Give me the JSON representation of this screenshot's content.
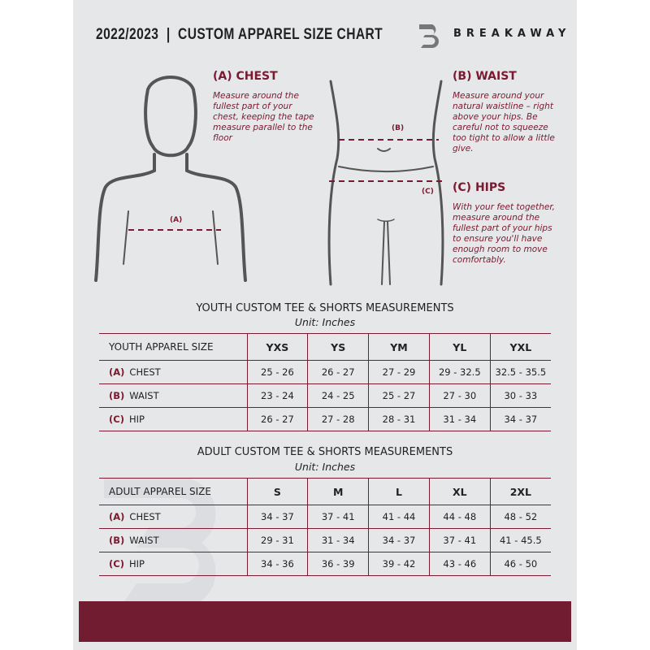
{
  "header": {
    "title": "2022/2023  |  CUSTOM APPAREL SIZE CHART",
    "brand": "BREAKAWAY",
    "logo_letter": "B"
  },
  "guides": {
    "chest": {
      "title": "(A) CHEST",
      "text": "Measure around the fullest part of your chest, keeping the tape measure parallel to the floor",
      "marker": "(A)"
    },
    "waist": {
      "title": "(B) WAIST",
      "text": "Measure around your natural waistline – right above your hips. Be careful not to squeeze too tight to allow a little give.",
      "marker": "(B)"
    },
    "hips": {
      "title": "(C) HIPS",
      "text": "With your feet together, measure around the fullest part of your hips to ensure you'll have enough room to move comfortably.",
      "marker": "(C)"
    }
  },
  "youth": {
    "title": "YOUTH CUSTOM TEE & SHORTS MEASUREMENTS",
    "unit": "Unit: Inches",
    "header": "YOUTH APPAREL SIZE",
    "sizes": [
      "YXS",
      "YS",
      "YM",
      "YL",
      "YXL"
    ],
    "rows": [
      {
        "letter": "(A)",
        "label": "CHEST",
        "values": [
          "25 - 26",
          "26 - 27",
          "27 - 29",
          "29 - 32.5",
          "32.5 - 35.5"
        ]
      },
      {
        "letter": "(B)",
        "label": "WAIST",
        "values": [
          "23 - 24",
          "24 - 25",
          "25 - 27",
          "27 - 30",
          "30 - 33"
        ]
      },
      {
        "letter": "(C)",
        "label": "HIP",
        "values": [
          "26 - 27",
          "27 - 28",
          "28 - 31",
          "31 - 34",
          "34 - 37"
        ]
      }
    ]
  },
  "adult": {
    "title": "ADULT CUSTOM TEE & SHORTS MEASUREMENTS",
    "unit": "Unit: Inches",
    "header": "ADULT APPAREL SIZE",
    "sizes": [
      "S",
      "M",
      "L",
      "XL",
      "2XL"
    ],
    "rows": [
      {
        "letter": "(A)",
        "label": "CHEST",
        "values": [
          "34 - 37",
          "37 - 41",
          "41 - 44",
          "44 - 48",
          "48 - 52"
        ]
      },
      {
        "letter": "(B)",
        "label": "WAIST",
        "values": [
          "29 - 31",
          "31 - 34",
          "34 - 37",
          "37 - 41",
          "41 - 45.5"
        ]
      },
      {
        "letter": "(C)",
        "label": "HIP",
        "values": [
          "34 - 36",
          "36 - 39",
          "39 - 42",
          "43 - 46",
          "46 - 50"
        ]
      }
    ]
  },
  "colors": {
    "accent": "#7a1a30",
    "footer": "#721c31",
    "page": "#e6e7e9"
  }
}
